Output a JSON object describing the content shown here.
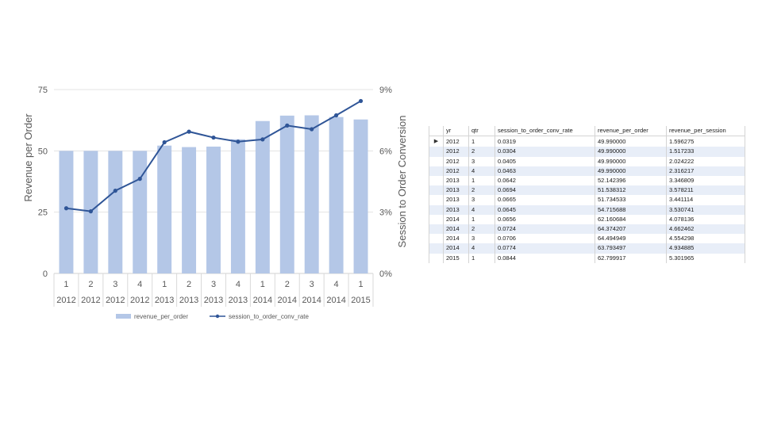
{
  "chart_data": {
    "type": "bar+line",
    "categories": [
      {
        "qtr": "1",
        "yr": "2012"
      },
      {
        "qtr": "2",
        "yr": "2012"
      },
      {
        "qtr": "3",
        "yr": "2012"
      },
      {
        "qtr": "4",
        "yr": "2012"
      },
      {
        "qtr": "1",
        "yr": "2013"
      },
      {
        "qtr": "2",
        "yr": "2013"
      },
      {
        "qtr": "3",
        "yr": "2013"
      },
      {
        "qtr": "4",
        "yr": "2013"
      },
      {
        "qtr": "1",
        "yr": "2014"
      },
      {
        "qtr": "2",
        "yr": "2014"
      },
      {
        "qtr": "3",
        "yr": "2014"
      },
      {
        "qtr": "4",
        "yr": "2014"
      },
      {
        "qtr": "1",
        "yr": "2015"
      }
    ],
    "series": [
      {
        "name": "revenue_per_order",
        "type": "bar",
        "axis": "left",
        "color": "#b4c7e7",
        "values": [
          49.99,
          49.99,
          49.99,
          49.99,
          52.142396,
          51.538312,
          51.734533,
          54.715688,
          62.160684,
          64.374207,
          64.494949,
          63.793497,
          62.799917
        ]
      },
      {
        "name": "session_to_order_conv_rate",
        "type": "line",
        "axis": "right",
        "color": "#2f5597",
        "values": [
          0.0319,
          0.0304,
          0.0405,
          0.0463,
          0.0642,
          0.0694,
          0.0665,
          0.0645,
          0.0656,
          0.0724,
          0.0706,
          0.0774,
          0.0844
        ]
      }
    ],
    "ylabel_left": "Revenue per Order",
    "ylabel_right": "Session to Order Conversion",
    "ylim_left": [
      0,
      75
    ],
    "ylim_right": [
      0,
      0.09
    ],
    "yticks_left": [
      "0",
      "25",
      "50",
      "75"
    ],
    "yticks_right": [
      "0%",
      "3%",
      "6%",
      "9%"
    ],
    "grid": true,
    "legend_position": "bottom"
  },
  "table": {
    "columns": [
      "yr",
      "qtr",
      "session_to_order_conv_rate",
      "revenue_per_order",
      "revenue_per_session"
    ],
    "rows": [
      [
        "2012",
        "1",
        "0.0319",
        "49.990000",
        "1.596275"
      ],
      [
        "2012",
        "2",
        "0.0304",
        "49.990000",
        "1.517233"
      ],
      [
        "2012",
        "3",
        "0.0405",
        "49.990000",
        "2.024222"
      ],
      [
        "2012",
        "4",
        "0.0463",
        "49.990000",
        "2.316217"
      ],
      [
        "2013",
        "1",
        "0.0642",
        "52.142396",
        "3.346809"
      ],
      [
        "2013",
        "2",
        "0.0694",
        "51.538312",
        "3.578211"
      ],
      [
        "2013",
        "3",
        "0.0665",
        "51.734533",
        "3.441114"
      ],
      [
        "2013",
        "4",
        "0.0645",
        "54.715688",
        "3.530741"
      ],
      [
        "2014",
        "1",
        "0.0656",
        "62.160684",
        "4.078136"
      ],
      [
        "2014",
        "2",
        "0.0724",
        "64.374207",
        "4.662462"
      ],
      [
        "2014",
        "3",
        "0.0706",
        "64.494949",
        "4.554298"
      ],
      [
        "2014",
        "4",
        "0.0774",
        "63.793497",
        "4.934885"
      ],
      [
        "2015",
        "1",
        "0.0844",
        "62.799917",
        "5.301965"
      ]
    ],
    "row_pointer": "▶"
  }
}
